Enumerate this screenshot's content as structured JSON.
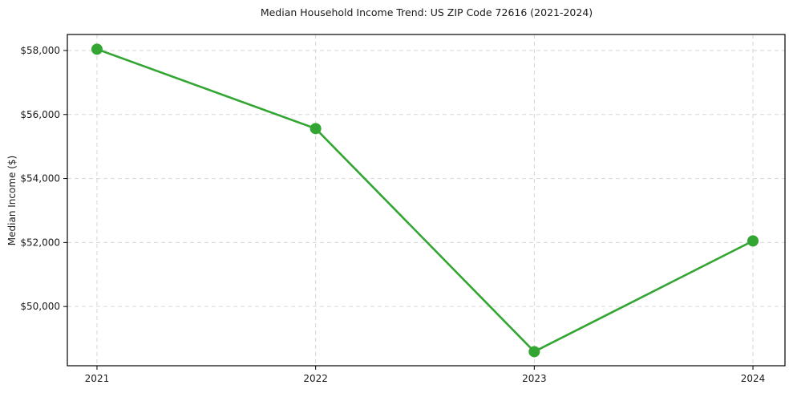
{
  "chart_data": {
    "type": "line",
    "title": "Median Household Income Trend: US ZIP Code 72616 (2021-2024)",
    "xlabel": "",
    "ylabel": "Median Income ($)",
    "x": [
      2021,
      2022,
      2023,
      2024
    ],
    "x_tick_labels": [
      "2021",
      "2022",
      "2023",
      "2024"
    ],
    "series": [
      {
        "name": "Median Household Income",
        "values": [
          58040,
          55560,
          48590,
          52050
        ]
      }
    ],
    "y_ticks": [
      50000,
      52000,
      54000,
      56000,
      58000
    ],
    "y_tick_labels": [
      "$50,000",
      "$52,000",
      "$54,000",
      "$56,000",
      "$58,000"
    ],
    "xlim": [
      2020.8645,
      2024.1465
    ],
    "ylim": [
      48150,
      58500
    ],
    "grid": true,
    "legend": "none",
    "colors": {
      "line": "#33a532",
      "marker": "#33a532",
      "grid": "#d6d6d6",
      "spine": "#000000",
      "text": "#1a1a1a",
      "background": "#ffffff"
    }
  }
}
